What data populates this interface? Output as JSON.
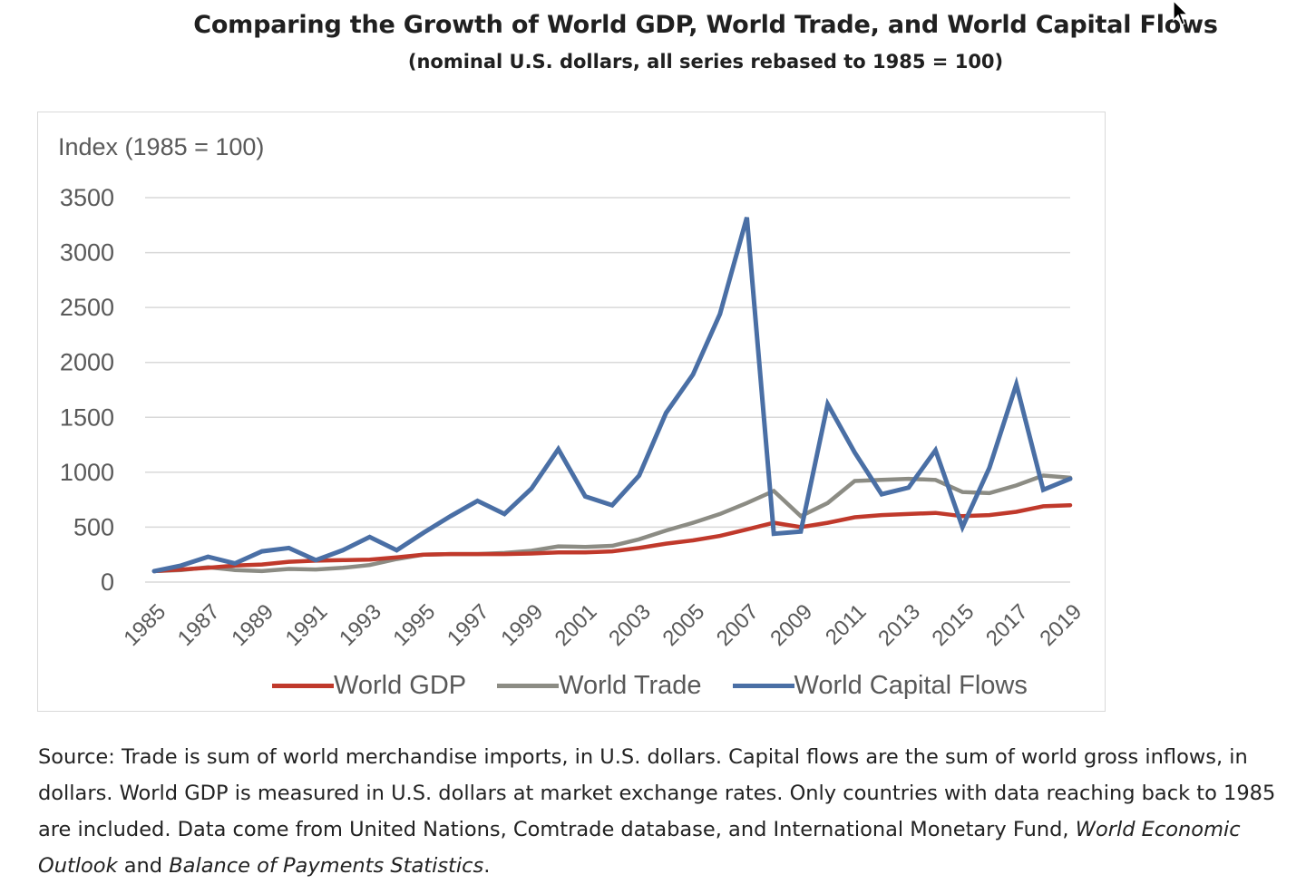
{
  "title": "Comparing the Growth of World GDP, World Trade, and World Capital Flows",
  "subtitle": "(nominal U.S. dollars, all series rebased to 1985 = 100)",
  "source": {
    "text_1": "Source: Trade is sum of world merchandise imports, in U.S. dollars. Capital flows are the sum of world gross inflows, in dollars. World GDP is measured in U.S. dollars at market exchange rates. Only countries with data reaching back to 1985 are included. Data come from United Nations, Comtrade database, and International Monetary Fund, ",
    "italic_1": "World Economic Outlook",
    "text_2": " and ",
    "italic_2": "Balance of Payments Statistics",
    "text_3": "."
  },
  "chart_data": {
    "type": "line",
    "title": "Comparing the Growth of World GDP, World Trade, and World Capital Flows",
    "subtitle": "(nominal U.S. dollars, all series rebased to 1985 = 100)",
    "ylabel": "Index (1985 = 100)",
    "xlabel": "",
    "ylim": [
      0,
      3500
    ],
    "yticks": [
      0,
      500,
      1000,
      1500,
      2000,
      2500,
      3000,
      3500
    ],
    "grid": true,
    "legend_position": "bottom",
    "x": [
      1985,
      1986,
      1987,
      1988,
      1989,
      1990,
      1991,
      1992,
      1993,
      1994,
      1995,
      1996,
      1997,
      1998,
      1999,
      2000,
      2001,
      2002,
      2003,
      2004,
      2005,
      2006,
      2007,
      2008,
      2009,
      2010,
      2011,
      2012,
      2013,
      2014,
      2015,
      2016,
      2017,
      2018,
      2019
    ],
    "x_tick_labels": [
      "1985",
      "1987",
      "1989",
      "1991",
      "1993",
      "1995",
      "1997",
      "1999",
      "2001",
      "2003",
      "2005",
      "2007",
      "2009",
      "2011",
      "2013",
      "2015",
      "2017",
      "2019"
    ],
    "series": [
      {
        "name": "World GDP",
        "color": "#c0392b",
        "values": [
          100,
          115,
          130,
          150,
          160,
          185,
          195,
          200,
          205,
          225,
          250,
          255,
          255,
          255,
          260,
          270,
          270,
          280,
          310,
          350,
          380,
          420,
          480,
          540,
          500,
          540,
          590,
          610,
          620,
          630,
          600,
          610,
          640,
          690,
          700
        ]
      },
      {
        "name": "World Trade",
        "color": "#8c8c84",
        "values": [
          100,
          110,
          135,
          110,
          100,
          120,
          115,
          130,
          155,
          210,
          250,
          255,
          255,
          265,
          285,
          325,
          320,
          330,
          390,
          470,
          540,
          620,
          720,
          830,
          600,
          720,
          920,
          930,
          940,
          930,
          820,
          810,
          880,
          970,
          950
        ]
      },
      {
        "name": "World Capital Flows",
        "color": "#4a6fa5",
        "values": [
          100,
          150,
          230,
          170,
          280,
          310,
          200,
          290,
          410,
          290,
          450,
          600,
          740,
          620,
          850,
          1210,
          780,
          700,
          970,
          1540,
          1890,
          2440,
          3320,
          440,
          460,
          1620,
          1180,
          800,
          860,
          1200,
          500,
          1040,
          1800,
          840,
          940
        ]
      }
    ]
  }
}
